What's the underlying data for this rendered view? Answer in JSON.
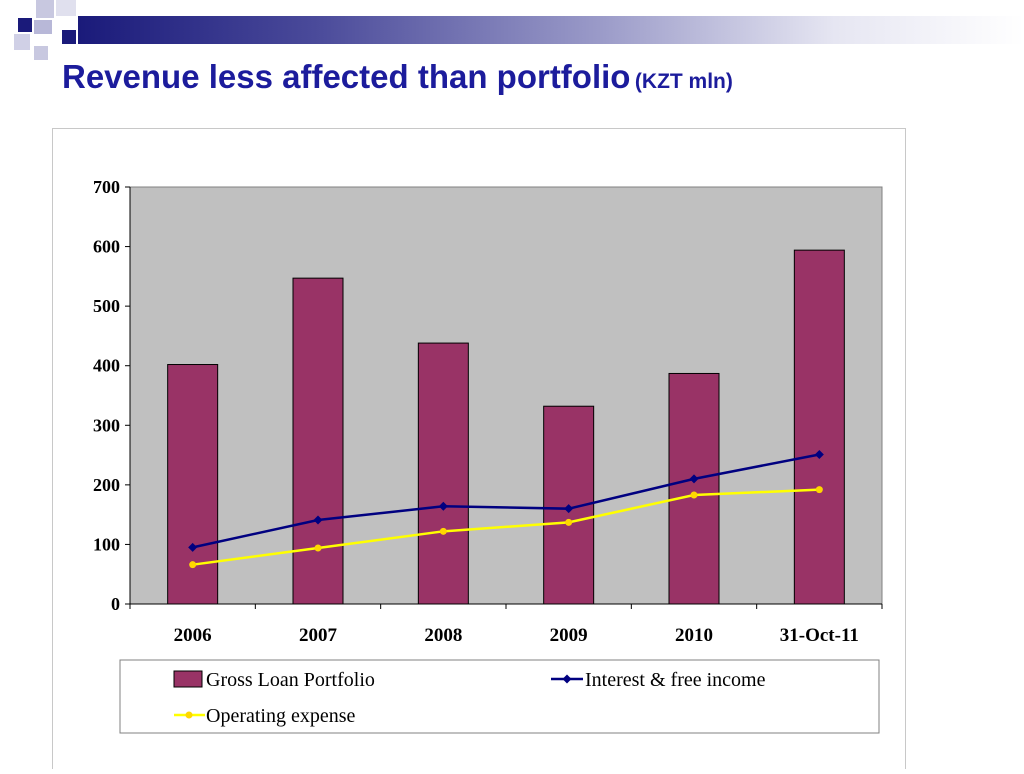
{
  "slide": {
    "title": "Revenue less affected than portfolio",
    "title_unit": "(KZT mln)"
  },
  "colors": {
    "bar_fill": "#993366",
    "interest_line": "#000080",
    "opex_line": "#FFFF00",
    "opex_marker": "#FFD700",
    "plot_background": "#C0C0C0",
    "title_color": "#1C1C9C"
  },
  "chart_data": {
    "type": "bar",
    "categories": [
      "2006",
      "2007",
      "2008",
      "2009",
      "2010",
      "31-Oct-11"
    ],
    "series": [
      {
        "name": "Gross Loan Portfolio",
        "type": "bar",
        "values": [
          402,
          547,
          438,
          332,
          387,
          594
        ]
      },
      {
        "name": "Interest & free income",
        "type": "line",
        "marker": "diamond",
        "values": [
          95,
          141,
          164,
          160,
          210,
          251
        ]
      },
      {
        "name": "Operating expense",
        "type": "line",
        "marker": "circle",
        "values": [
          66,
          94,
          122,
          137,
          183,
          192
        ]
      }
    ],
    "yticks": [
      "0",
      "100",
      "200",
      "300",
      "400",
      "500",
      "600",
      "700"
    ],
    "ylim": [
      0,
      700
    ],
    "title": "",
    "xlabel": "",
    "ylabel": "",
    "grid": false,
    "legend_position": "bottom"
  }
}
